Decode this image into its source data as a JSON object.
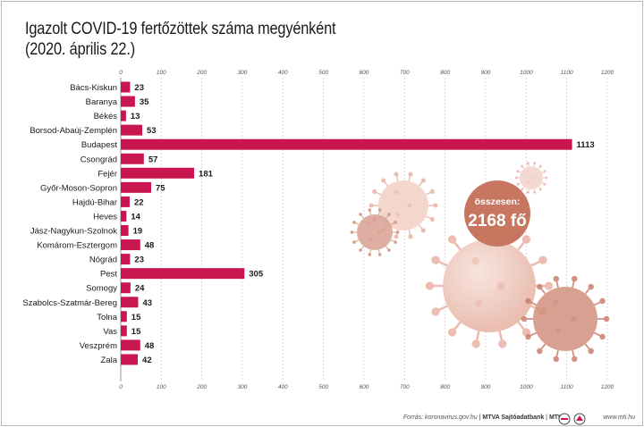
{
  "title_line1": "Igazolt COVID-19 fertőzöttek száma megyénként",
  "title_line2": "(2020. április 22.)",
  "total": {
    "label": "összesen:",
    "value": "2168 fő"
  },
  "footer": {
    "source_prefix": "Forrás: koronavirus.gov.hu",
    "source_sep": " | ",
    "source_org": "MTVA Sajtóadatbank",
    "source_sep2": " | ",
    "source_mti": "MTI",
    "site": "www.mti.hu"
  },
  "colors": {
    "bar": "#c8174f",
    "grid": "#c8c8c8",
    "badge": "#c77660",
    "virus_light": "#f3d6cc",
    "virus_mid": "#e9b2a4",
    "virus_dark": "#c97f6e"
  },
  "chart_data": {
    "type": "bar",
    "orientation": "horizontal",
    "categories": [
      "Bács-Kiskun",
      "Baranya",
      "Békés",
      "Borsod-Abaúj-Zemplén",
      "Budapest",
      "Csongrád",
      "Fejér",
      "Győr-Moson-Sopron",
      "Hajdú-Bihar",
      "Heves",
      "Jász-Nagykun-Szolnok",
      "Komárom-Esztergom",
      "Nógrád",
      "Pest",
      "Somogy",
      "Szabolcs-Szatmár-Bereg",
      "Tolna",
      "Vas",
      "Veszprém",
      "Zala"
    ],
    "values": [
      23,
      35,
      13,
      53,
      1113,
      57,
      181,
      75,
      22,
      14,
      19,
      48,
      23,
      305,
      24,
      43,
      15,
      15,
      48,
      42
    ],
    "xlim": [
      0,
      1200
    ],
    "ticks": [
      0,
      100,
      200,
      300,
      400,
      500,
      600,
      700,
      800,
      900,
      1000,
      1100,
      1200
    ],
    "tick_labels": [
      "0",
      "100",
      "200",
      "300",
      "400",
      "500",
      "600",
      "700",
      "800",
      "900",
      "1000",
      "1100",
      "1200"
    ],
    "grid": true,
    "axis_labels_top_and_bottom": true
  }
}
